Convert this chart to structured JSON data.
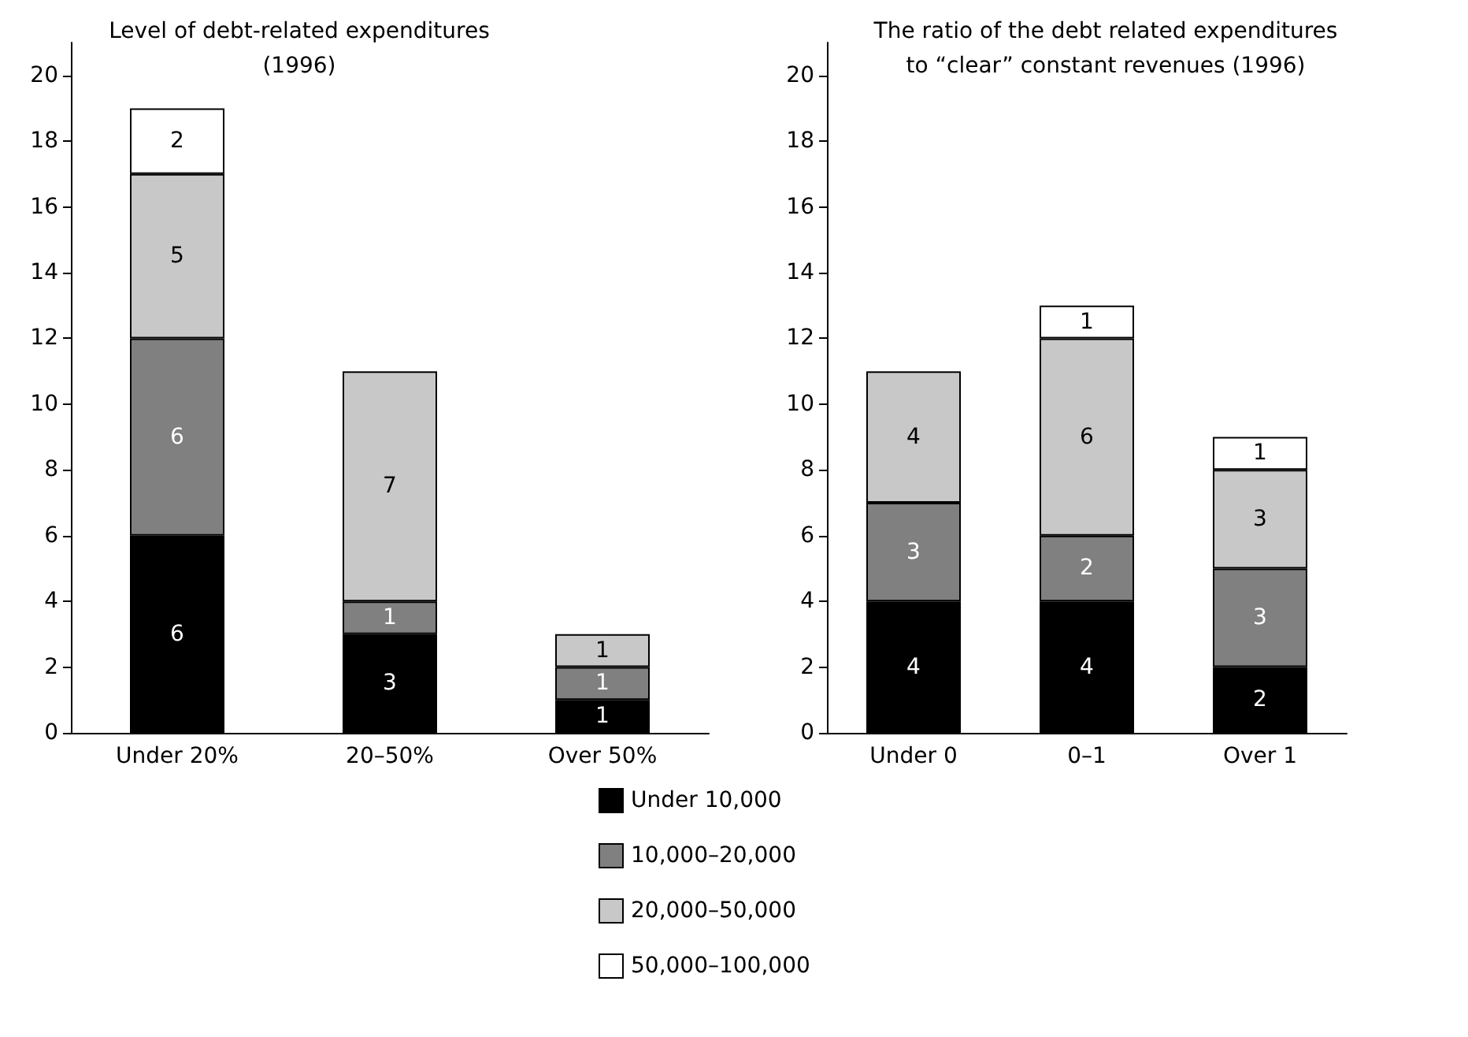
{
  "chart_data": [
    {
      "type": "bar",
      "title": "Level of debt-related expenditures\n(1996)",
      "categories": [
        "Under 20%",
        "20–50%",
        "Over 50%"
      ],
      "stacked": true,
      "data_labels": true,
      "grid": false,
      "legend": "bottom",
      "ylim": [
        0,
        21
      ],
      "yticks": [
        0,
        2,
        4,
        6,
        8,
        10,
        12,
        14,
        16,
        18,
        20
      ],
      "series": [
        {
          "name": "Under 10,000",
          "color": "#000000",
          "values": [
            6,
            3,
            1
          ]
        },
        {
          "name": "10,000–20,000",
          "color": "#808080",
          "values": [
            6,
            1,
            1
          ]
        },
        {
          "name": "20,000–50,000",
          "color": "#c8c8c8",
          "values": [
            5,
            7,
            1
          ]
        },
        {
          "name": "50,000–100,000",
          "color": "#ffffff",
          "values": [
            2,
            null,
            null
          ]
        }
      ]
    },
    {
      "type": "bar",
      "title": "The ratio of the debt related expenditures\nto “clear” constant revenues (1996)",
      "categories": [
        "Under 0",
        "0–1",
        "Over 1"
      ],
      "stacked": true,
      "data_labels": true,
      "grid": false,
      "legend": false,
      "ylim": [
        0,
        21
      ],
      "yticks": [
        0,
        2,
        4,
        6,
        8,
        10,
        12,
        14,
        16,
        18,
        20
      ],
      "series": [
        {
          "color": "#000000",
          "values": [
            4,
            4,
            2
          ]
        },
        {
          "color": "#808080",
          "values": [
            3,
            2,
            3
          ]
        },
        {
          "color": "#c8c8c8",
          "values": [
            4,
            6,
            3
          ]
        },
        {
          "color": "#ffffff",
          "values": [
            null,
            1,
            1
          ]
        }
      ]
    }
  ]
}
